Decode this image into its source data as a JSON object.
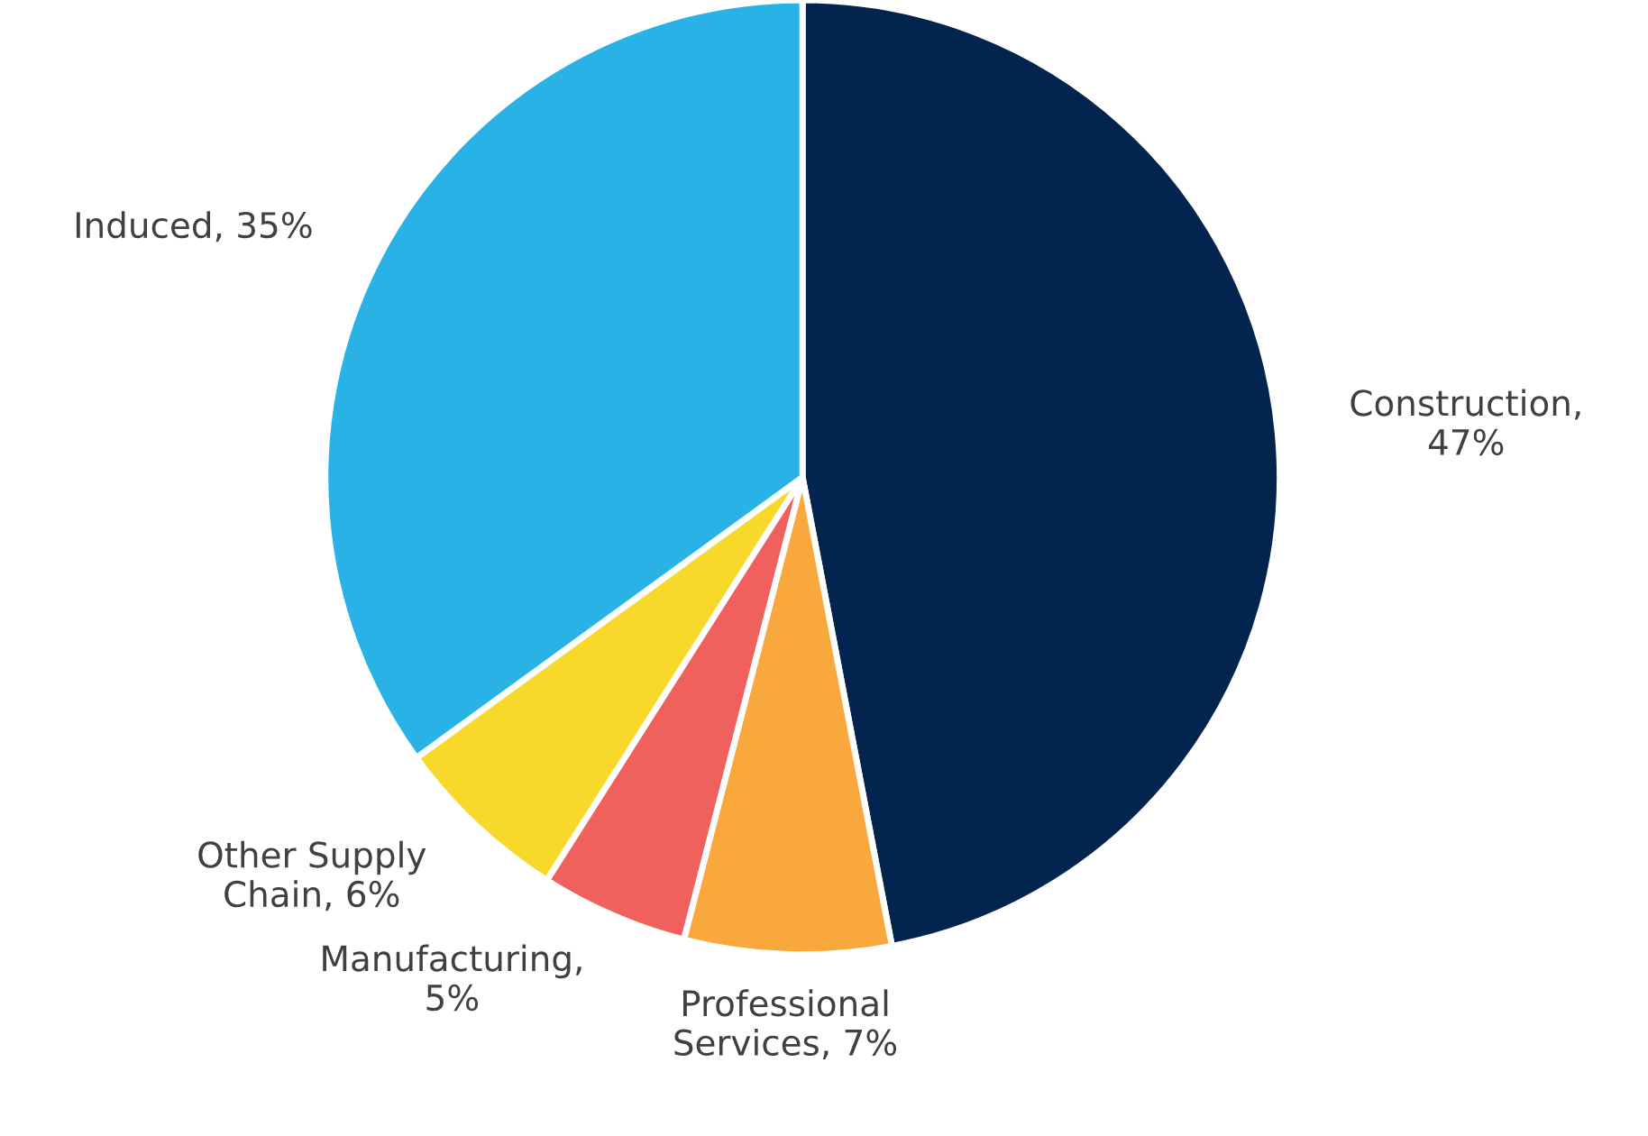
{
  "chart_data": {
    "type": "pie",
    "categories": [
      "Construction, 47%",
      "Professional Services, 7%",
      "Manufacturing, 5%",
      "Other Supply Chain, 6%",
      "Induced, 35%"
    ],
    "values": [
      47,
      7,
      5,
      6,
      35
    ],
    "colors": [
      "#03244f",
      "#f9a83e",
      "#f0605d",
      "#f8d92b",
      "#29b2e6"
    ]
  }
}
